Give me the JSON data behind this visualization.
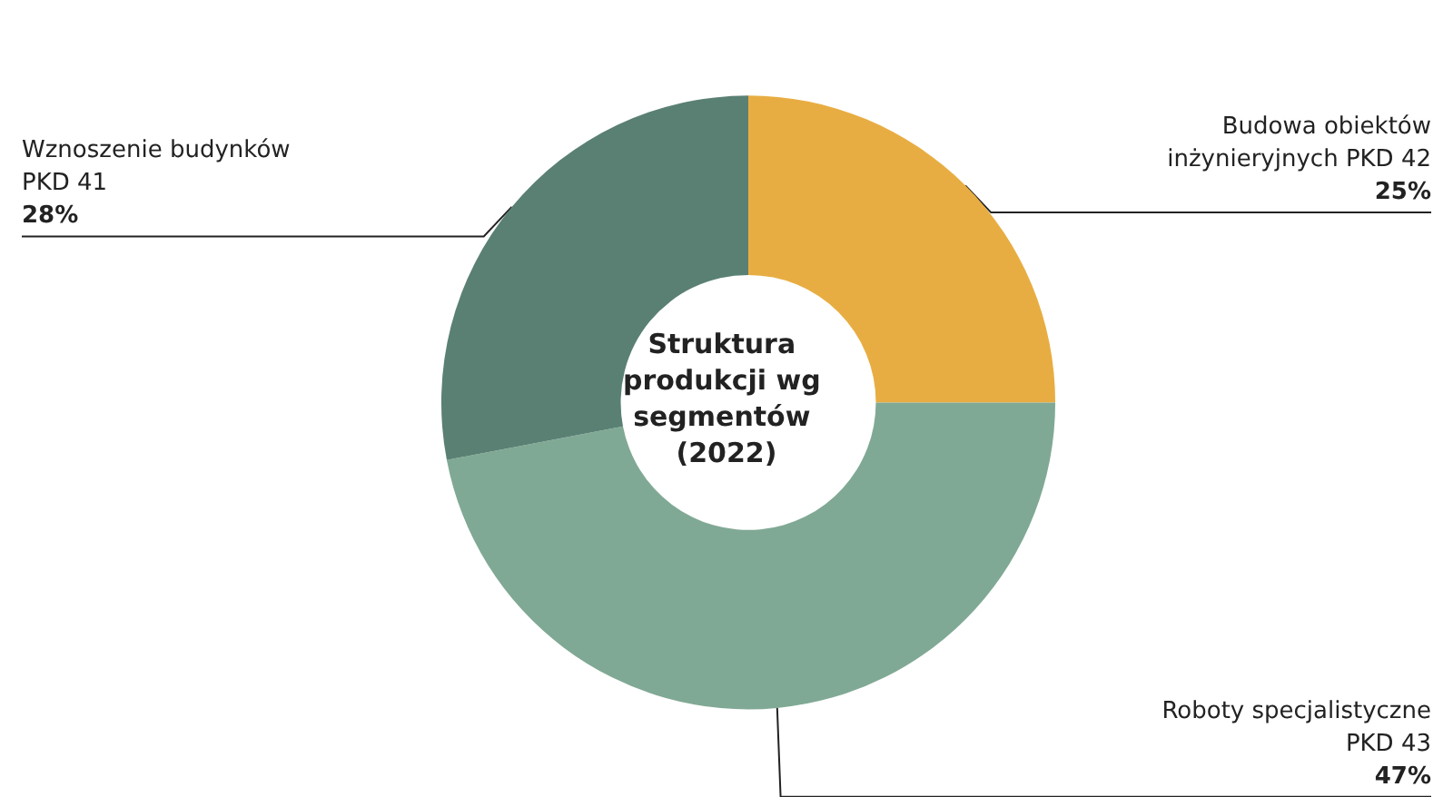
{
  "chart_data": {
    "type": "donut",
    "title": "Struktura produkcji wg segmentów (2022)",
    "categories": [
      "Budowa obiektów inżynieryjnych PKD 42",
      "Roboty specjalistyczne PKD 43",
      "Wznoszenie budynków PKD 41"
    ],
    "values": [
      25,
      47,
      28
    ],
    "value_labels": [
      "25%",
      "47%",
      "28%"
    ],
    "colors": [
      "#e8ad42",
      "#80a995",
      "#5a8074"
    ],
    "legend": false
  }
}
